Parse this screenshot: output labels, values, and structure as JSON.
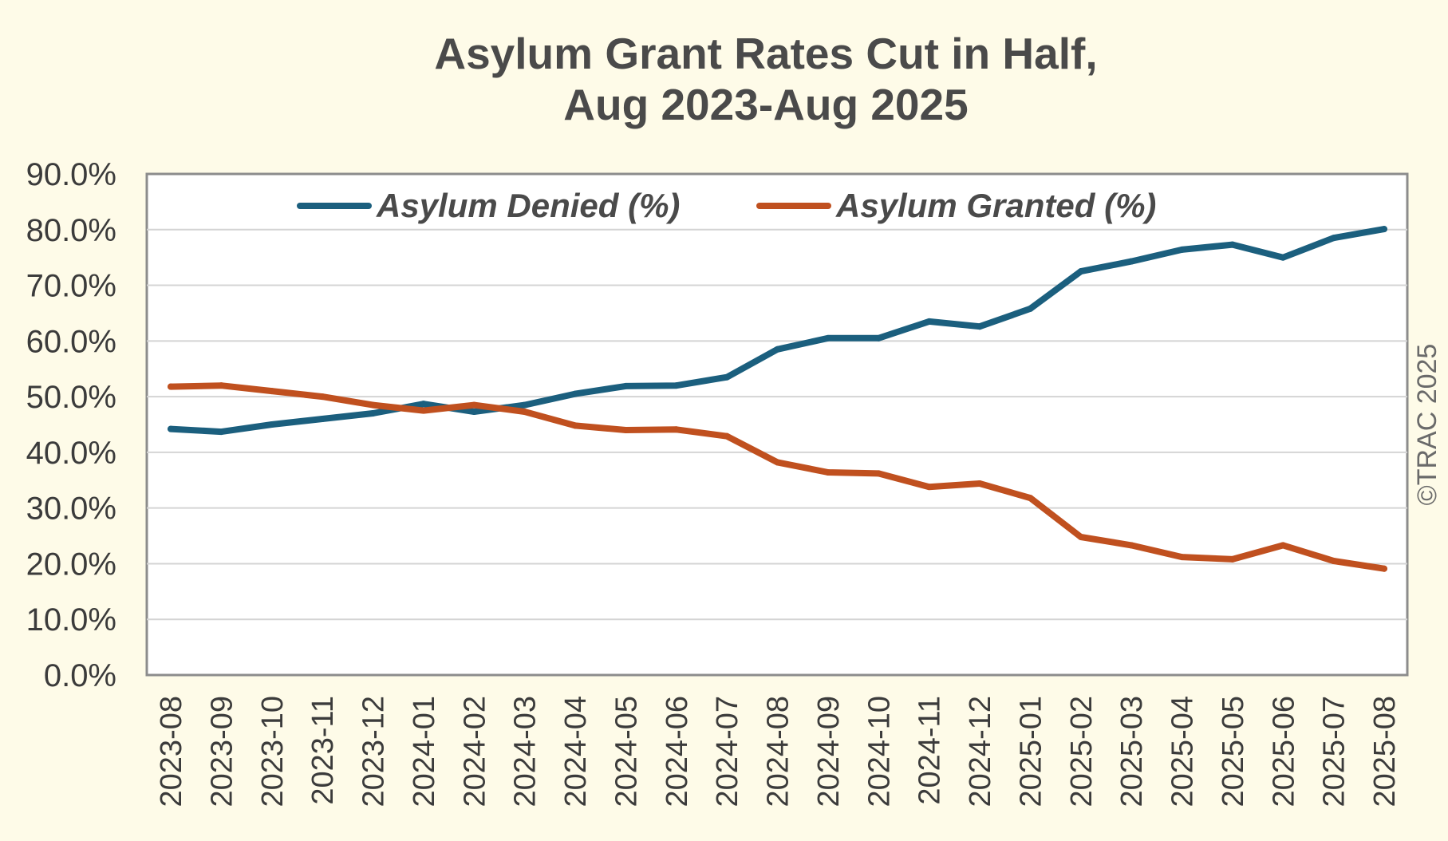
{
  "chart_data": {
    "type": "line",
    "title": [
      "Asylum Grant Rates Cut in Half,",
      "Aug 2023-Aug 2025"
    ],
    "xlabel": "",
    "ylabel": "",
    "ylim": [
      0,
      90
    ],
    "ytick_labels": [
      "0.0%",
      "10.0%",
      "20.0%",
      "30.0%",
      "40.0%",
      "50.0%",
      "60.0%",
      "70.0%",
      "80.0%",
      "90.0%"
    ],
    "grid": true,
    "legend_position": "top-center",
    "categories": [
      "2023-08",
      "2023-09",
      "2023-10",
      "2023-11",
      "2023-12",
      "2024-01",
      "2024-02",
      "2024-03",
      "2024-04",
      "2024-05",
      "2024-06",
      "2024-07",
      "2024-08",
      "2024-09",
      "2024-10",
      "2024-11",
      "2024-12",
      "2025-01",
      "2025-02",
      "2025-03",
      "2025-04",
      "2025-05",
      "2025-06",
      "2025-07",
      "2025-08"
    ],
    "series": [
      {
        "name": "Asylum Denied (%)",
        "color": "#1b5f7e",
        "values": [
          44.2,
          43.7,
          45.0,
          46.0,
          47.0,
          48.7,
          47.3,
          48.5,
          50.5,
          51.9,
          52.0,
          53.5,
          58.5,
          60.5,
          60.5,
          63.5,
          62.6,
          65.8,
          72.5,
          74.3,
          76.4,
          77.3,
          75.0,
          78.5,
          80.1
        ]
      },
      {
        "name": "Asylum Granted (%)",
        "color": "#c0501f",
        "values": [
          51.8,
          52.0,
          51.0,
          50.0,
          48.5,
          47.5,
          48.5,
          47.3,
          44.8,
          44.0,
          44.1,
          42.9,
          38.2,
          36.4,
          36.2,
          33.8,
          34.4,
          31.8,
          24.8,
          23.3,
          21.2,
          20.8,
          23.3,
          20.5,
          19.1
        ]
      }
    ]
  },
  "credit": "©TRAC 2025"
}
